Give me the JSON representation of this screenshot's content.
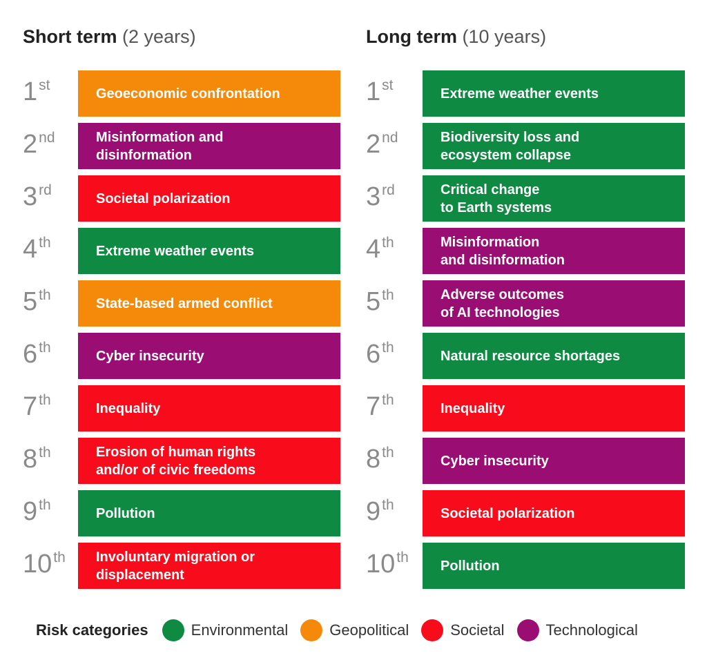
{
  "columns": [
    {
      "title_bold": "Short term",
      "title_rest": "(2 years)",
      "items": [
        {
          "rank": 1,
          "suffix": "st",
          "lines": [
            "Geoeconomic confrontation"
          ],
          "category": 1
        },
        {
          "rank": 2,
          "suffix": "nd",
          "lines": [
            "Misinformation and",
            "disinformation"
          ],
          "category": 3
        },
        {
          "rank": 3,
          "suffix": "rd",
          "lines": [
            "Societal polarization"
          ],
          "category": 2
        },
        {
          "rank": 4,
          "suffix": "th",
          "lines": [
            "Extreme weather events"
          ],
          "category": 0
        },
        {
          "rank": 5,
          "suffix": "th",
          "lines": [
            "State-based armed conflict"
          ],
          "category": 1
        },
        {
          "rank": 6,
          "suffix": "th",
          "lines": [
            "Cyber insecurity"
          ],
          "category": 3
        },
        {
          "rank": 7,
          "suffix": "th",
          "lines": [
            "Inequality"
          ],
          "category": 2
        },
        {
          "rank": 8,
          "suffix": "th",
          "lines": [
            "Erosion of human rights",
            "and/or of civic freedoms"
          ],
          "category": 2
        },
        {
          "rank": 9,
          "suffix": "th",
          "lines": [
            "Pollution"
          ],
          "category": 0
        },
        {
          "rank": 10,
          "suffix": "th",
          "lines": [
            "Involuntary migration or",
            "displacement"
          ],
          "category": 2
        }
      ]
    },
    {
      "title_bold": "Long term",
      "title_rest": "(10 years)",
      "items": [
        {
          "rank": 1,
          "suffix": "st",
          "lines": [
            "Extreme weather events"
          ],
          "category": 0
        },
        {
          "rank": 2,
          "suffix": "nd",
          "lines": [
            "Biodiversity loss and",
            "ecosystem collapse"
          ],
          "category": 0
        },
        {
          "rank": 3,
          "suffix": "rd",
          "lines": [
            "Critical change",
            "to Earth systems"
          ],
          "category": 0
        },
        {
          "rank": 4,
          "suffix": "th",
          "lines": [
            "Misinformation",
            "and disinformation"
          ],
          "category": 3
        },
        {
          "rank": 5,
          "suffix": "th",
          "lines": [
            "Adverse outcomes",
            "of AI technologies"
          ],
          "category": 3
        },
        {
          "rank": 6,
          "suffix": "th",
          "lines": [
            "Natural resource shortages"
          ],
          "category": 0
        },
        {
          "rank": 7,
          "suffix": "th",
          "lines": [
            "Inequality"
          ],
          "category": 2
        },
        {
          "rank": 8,
          "suffix": "th",
          "lines": [
            "Cyber insecurity"
          ],
          "category": 3
        },
        {
          "rank": 9,
          "suffix": "th",
          "lines": [
            "Societal polarization"
          ],
          "category": 2
        },
        {
          "rank": 10,
          "suffix": "th",
          "lines": [
            "Pollution"
          ],
          "category": 0
        }
      ]
    }
  ],
  "legend": {
    "title": "Risk categories",
    "items": [
      {
        "name": "Environmental",
        "color": "#0e8a43"
      },
      {
        "name": "Geopolitical",
        "color": "#f58a0a"
      },
      {
        "name": "Societal",
        "color": "#f80b1b"
      },
      {
        "name": "Technological",
        "color": "#9a0e73"
      }
    ]
  }
}
